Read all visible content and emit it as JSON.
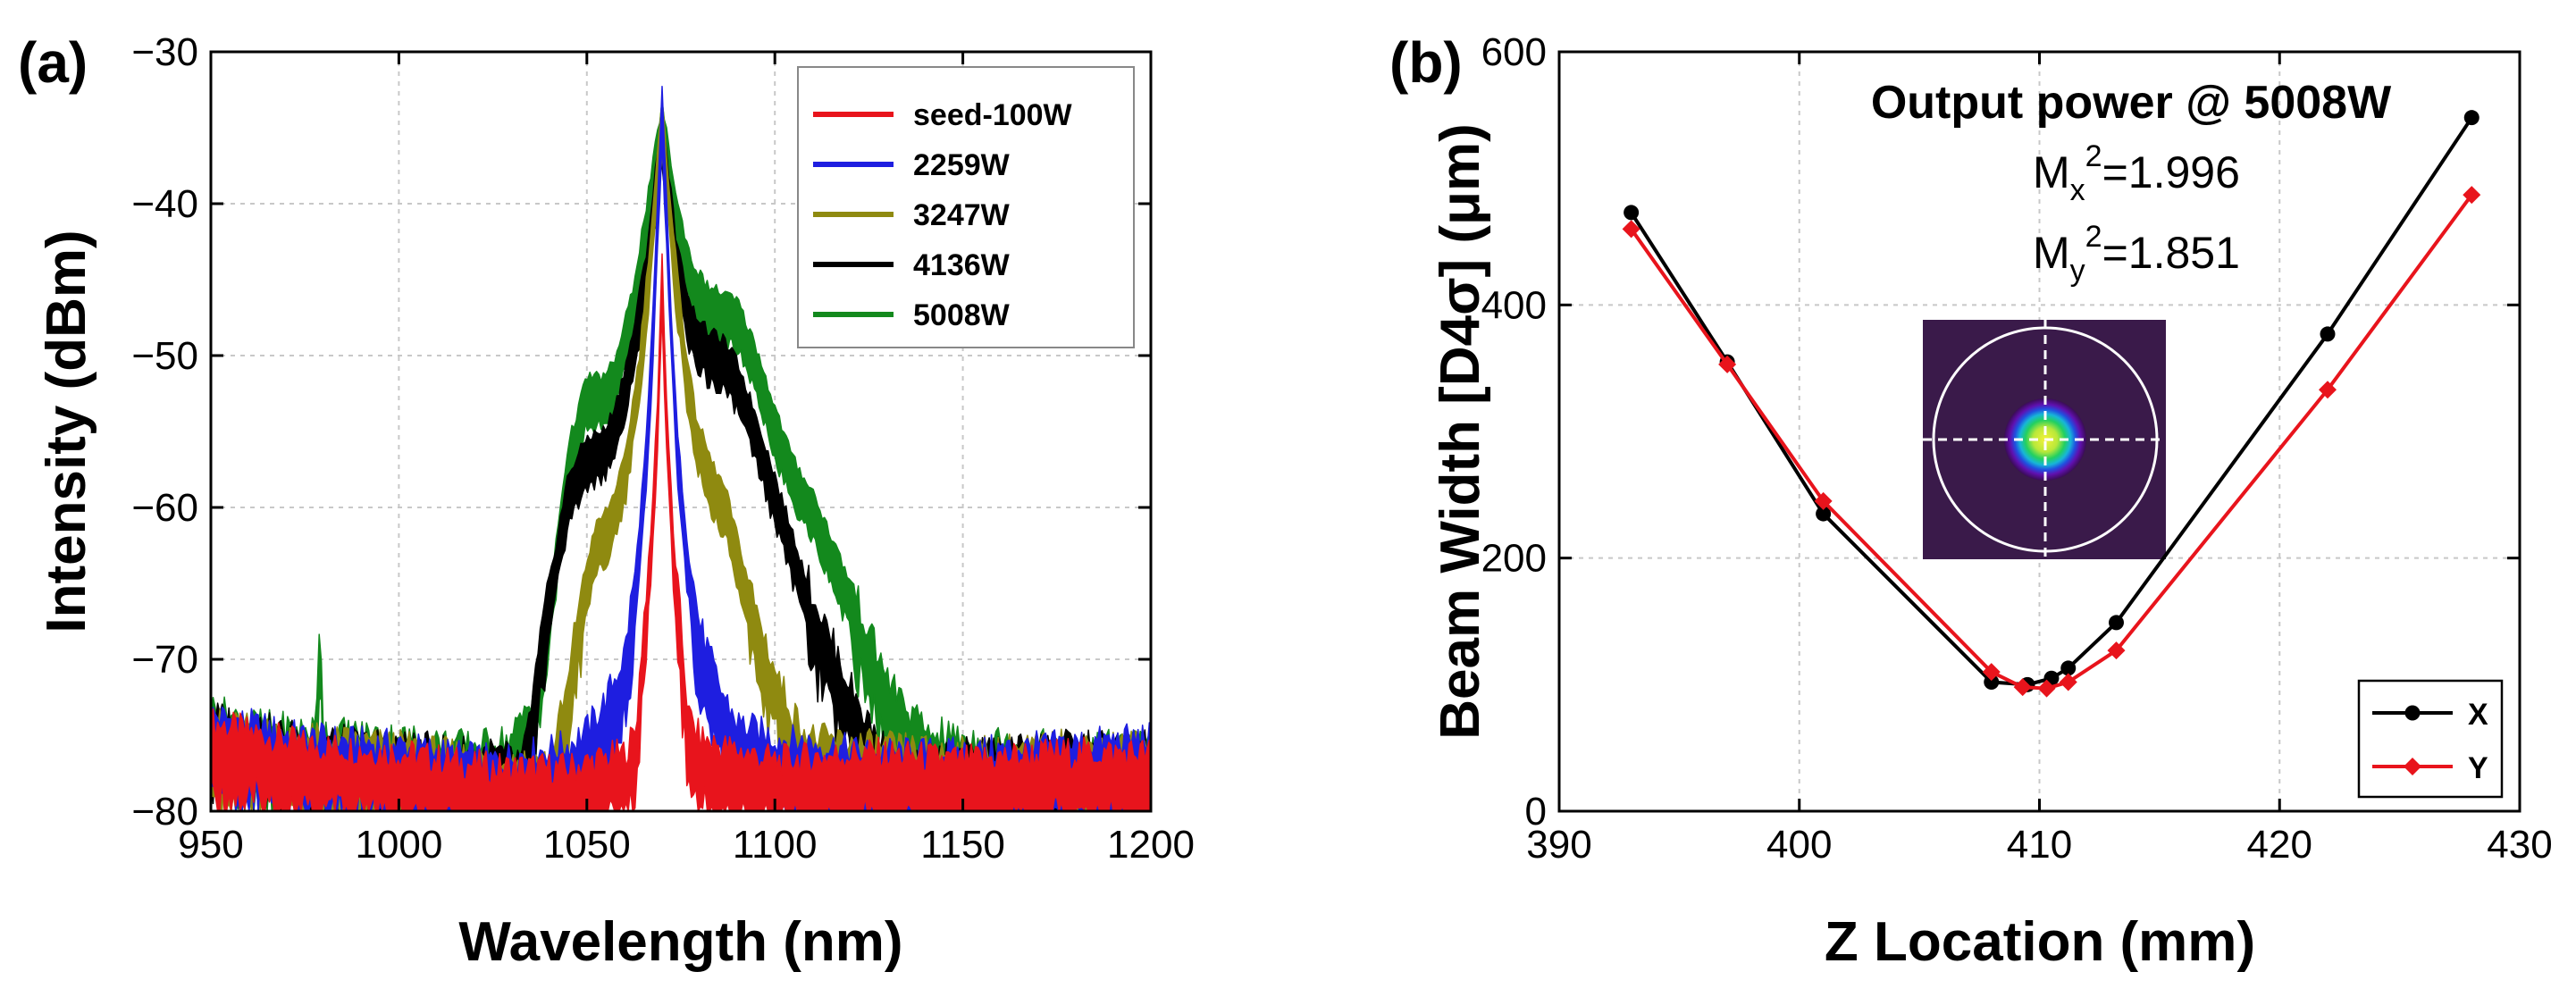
{
  "chart_data": [
    {
      "panel_label": "(a)",
      "type": "line",
      "xlabel": "Wavelength (nm)",
      "ylabel": "Intensity (dBm)",
      "xlim": [
        950,
        1200
      ],
      "ylim": [
        -80,
        -30
      ],
      "xticks": [
        950,
        1000,
        1050,
        1100,
        1150,
        1200
      ],
      "yticks": [
        -80,
        -70,
        -60,
        -50,
        -40,
        -30
      ],
      "xtick_labels": [
        "950",
        "1000",
        "1050",
        "1100",
        "1150",
        "1200"
      ],
      "ytick_labels": [
        "−80",
        "−70",
        "−60",
        "−50",
        "−40",
        "−30"
      ],
      "grid": true,
      "legend_position": "top-right",
      "series": [
        {
          "name": "seed-100W",
          "color": "#e8141c",
          "peak": -43.5,
          "points": [
            [
              950,
              -74.5
            ],
            [
              975,
              -76
            ],
            [
              1000,
              -76.5
            ],
            [
              1025,
              -77.5
            ],
            [
              1045,
              -77.5
            ],
            [
              1060,
              -76.5
            ],
            [
              1063,
              -75
            ],
            [
              1065,
              -68
            ],
            [
              1067,
              -62
            ],
            [
              1069,
              -52
            ],
            [
              1070,
              -43.5
            ],
            [
              1071,
              -52
            ],
            [
              1073,
              -62
            ],
            [
              1075,
              -68
            ],
            [
              1077,
              -74
            ],
            [
              1080,
              -75.5
            ],
            [
              1085,
              -76
            ],
            [
              1100,
              -77
            ],
            [
              1125,
              -76.5
            ],
            [
              1150,
              -77
            ],
            [
              1175,
              -76.5
            ],
            [
              1200,
              -76.5
            ]
          ]
        },
        {
          "name": "2259W",
          "color": "#1e1ee0",
          "peak": -32.5,
          "points": [
            [
              950,
              -74
            ],
            [
              975,
              -75.5
            ],
            [
              1000,
              -76
            ],
            [
              1025,
              -77
            ],
            [
              1045,
              -76
            ],
            [
              1050,
              -75
            ],
            [
              1055,
              -73
            ],
            [
              1060,
              -70
            ],
            [
              1063,
              -64
            ],
            [
              1066,
              -55
            ],
            [
              1068,
              -45
            ],
            [
              1070,
              -32.5
            ],
            [
              1072,
              -45
            ],
            [
              1074,
              -55
            ],
            [
              1077,
              -63
            ],
            [
              1080,
              -68
            ],
            [
              1085,
              -72
            ],
            [
              1090,
              -74.5
            ],
            [
              1100,
              -75.5
            ],
            [
              1125,
              -76.5
            ],
            [
              1150,
              -76.5
            ],
            [
              1175,
              -76
            ],
            [
              1200,
              -75.5
            ]
          ]
        },
        {
          "name": "3247W",
          "color": "#8f8a10",
          "peak": -33.5,
          "points": [
            [
              950,
              -74.5
            ],
            [
              975,
              -75.5
            ],
            [
              1000,
              -76
            ],
            [
              1025,
              -77
            ],
            [
              1040,
              -77
            ],
            [
              1045,
              -72
            ],
            [
              1048,
              -66
            ],
            [
              1052,
              -61.5
            ],
            [
              1056,
              -60
            ],
            [
              1060,
              -57
            ],
            [
              1064,
              -50
            ],
            [
              1067,
              -42
            ],
            [
              1070,
              -33.5
            ],
            [
              1073,
              -42
            ],
            [
              1076,
              -49
            ],
            [
              1079,
              -54
            ],
            [
              1083,
              -57
            ],
            [
              1087,
              -59
            ],
            [
              1090,
              -62
            ],
            [
              1095,
              -67
            ],
            [
              1100,
              -71
            ],
            [
              1105,
              -74
            ],
            [
              1110,
              -75.5
            ],
            [
              1125,
              -76
            ],
            [
              1150,
              -76.5
            ],
            [
              1175,
              -76
            ],
            [
              1200,
              -76
            ]
          ]
        },
        {
          "name": "4136W",
          "color": "#000000",
          "peak": -34,
          "points": [
            [
              950,
              -74
            ],
            [
              975,
              -75.5
            ],
            [
              1000,
              -76
            ],
            [
              1025,
              -76.5
            ],
            [
              1033,
              -77
            ],
            [
              1036,
              -72
            ],
            [
              1040,
              -65
            ],
            [
              1045,
              -58
            ],
            [
              1050,
              -55.5
            ],
            [
              1055,
              -55
            ],
            [
              1058,
              -53
            ],
            [
              1062,
              -49
            ],
            [
              1066,
              -43
            ],
            [
              1070,
              -34
            ],
            [
              1074,
              -43
            ],
            [
              1078,
              -47
            ],
            [
              1082,
              -48.5
            ],
            [
              1086,
              -49
            ],
            [
              1090,
              -50.5
            ],
            [
              1095,
              -54
            ],
            [
              1100,
              -58
            ],
            [
              1105,
              -62
            ],
            [
              1110,
              -66
            ],
            [
              1115,
              -69
            ],
            [
              1120,
              -72
            ],
            [
              1125,
              -74.5
            ],
            [
              1130,
              -76.5
            ],
            [
              1135,
              -77
            ],
            [
              1150,
              -76.5
            ],
            [
              1175,
              -76
            ],
            [
              1200,
              -76
            ]
          ]
        },
        {
          "name": "5008W",
          "color": "#13891d",
          "peak": -33.5,
          "points": [
            [
              950,
              -73.5
            ],
            [
              960,
              -74.5
            ],
            [
              975,
              -75
            ],
            [
              978,
              -75
            ],
            [
              979,
              -66.5
            ],
            [
              980,
              -75
            ],
            [
              1000,
              -75.5
            ],
            [
              1020,
              -76
            ],
            [
              1030,
              -75.5
            ],
            [
              1035,
              -73
            ],
            [
              1040,
              -66
            ],
            [
              1045,
              -56
            ],
            [
              1050,
              -51.5
            ],
            [
              1055,
              -51.5
            ],
            [
              1058,
              -50
            ],
            [
              1062,
              -46
            ],
            [
              1066,
              -40
            ],
            [
              1070,
              -33.5
            ],
            [
              1074,
              -40
            ],
            [
              1078,
              -44
            ],
            [
              1082,
              -45.5
            ],
            [
              1086,
              -46
            ],
            [
              1090,
              -46.5
            ],
            [
              1095,
              -49.5
            ],
            [
              1100,
              -53.5
            ],
            [
              1105,
              -57
            ],
            [
              1110,
              -59
            ],
            [
              1115,
              -62
            ],
            [
              1120,
              -65
            ],
            [
              1125,
              -68.5
            ],
            [
              1130,
              -71.5
            ],
            [
              1135,
              -73.5
            ],
            [
              1140,
              -75
            ],
            [
              1150,
              -75.5
            ],
            [
              1175,
              -76
            ],
            [
              1200,
              -76
            ]
          ]
        }
      ]
    },
    {
      "panel_label": "(b)",
      "type": "line",
      "xlabel": "Z Location (mm)",
      "ylabel": "Beam Width [D4σ] (μm)",
      "xlim": [
        390,
        430
      ],
      "ylim": [
        0,
        600
      ],
      "xticks": [
        390,
        400,
        410,
        420,
        430
      ],
      "yticks": [
        0,
        200,
        400,
        600
      ],
      "xtick_labels": [
        "390",
        "400",
        "410",
        "420",
        "430"
      ],
      "ytick_labels": [
        "0",
        "200",
        "400",
        "600"
      ],
      "grid": true,
      "legend_position": "bottom-right",
      "annotations": {
        "title": "Output power @ 5008W",
        "mx_label": "M",
        "mx_sub": "x",
        "mx_sup": "2",
        "mx_value": "=1.996",
        "my_label": "M",
        "my_sub": "y",
        "my_sup": "2",
        "my_value": "=1.851",
        "inset": "beam-profile-image"
      },
      "series": [
        {
          "name": "X",
          "color": "#000000",
          "marker": "circle",
          "x": [
            393,
            397,
            401,
            408,
            409.5,
            410.5,
            411.2,
            413.2,
            422,
            428
          ],
          "y": [
            473,
            355,
            235,
            102,
            100,
            105,
            113,
            149,
            377,
            548
          ]
        },
        {
          "name": "Y",
          "color": "#e8141c",
          "marker": "diamond",
          "x": [
            393,
            397,
            401,
            408,
            409.3,
            410.3,
            411.2,
            413.2,
            422,
            428
          ],
          "y": [
            460,
            353,
            245,
            110,
            98,
            97,
            102,
            127,
            333,
            487
          ]
        }
      ]
    }
  ]
}
